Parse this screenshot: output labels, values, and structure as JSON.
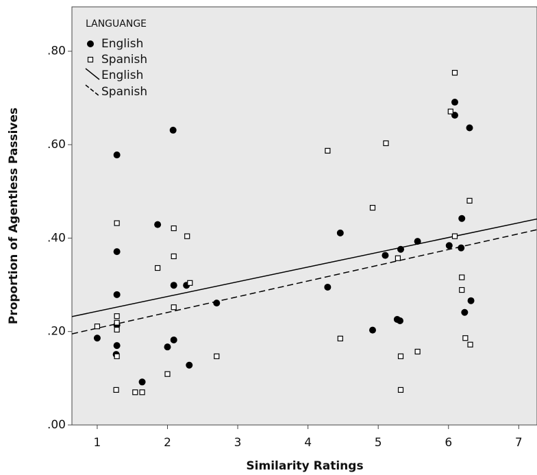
{
  "chart_data": {
    "type": "scatter",
    "x_label": "Similarity Ratings",
    "y_label": "Proportion of Agentless Passives",
    "legend_title": "LANGUANGE",
    "legend": "top-left",
    "xlim": [
      0.64,
      7.26
    ],
    "ylim": [
      0,
      0.895
    ],
    "xticks": [
      1,
      2,
      3,
      4,
      5,
      6,
      7
    ],
    "yticks": [
      {
        "value": 0,
        "label": ".00"
      },
      {
        "value": 0.2,
        "label": ".20"
      },
      {
        "value": 0.4,
        "label": ".40"
      },
      {
        "value": 0.6,
        "label": ".60"
      },
      {
        "value": 0.8,
        "label": ".80"
      }
    ],
    "series": [
      {
        "name": "English",
        "marker": "circle",
        "color": "#000000",
        "x": [
          1.0,
          1.27,
          1.28,
          1.28,
          1.28,
          1.28,
          1.28,
          1.64,
          1.86,
          2.08,
          2.09,
          2.09,
          2.0,
          2.27,
          2.31,
          2.7,
          4.28,
          4.46,
          4.92,
          5.1,
          5.27,
          5.31,
          5.32,
          5.56,
          6.01,
          6.09,
          6.09,
          6.18,
          6.32,
          6.23,
          6.3,
          6.19
        ],
        "values": [
          0.186,
          0.151,
          0.578,
          0.371,
          0.279,
          0.214,
          0.17,
          0.092,
          0.429,
          0.631,
          0.299,
          0.182,
          0.167,
          0.299,
          0.128,
          0.261,
          0.295,
          0.411,
          0.203,
          0.363,
          0.226,
          0.223,
          0.376,
          0.393,
          0.384,
          0.691,
          0.663,
          0.379,
          0.266,
          0.241,
          0.636,
          0.442
        ]
      },
      {
        "name": "Spanish",
        "marker": "square",
        "color": "#000000",
        "x": [
          1.0,
          1.27,
          1.28,
          1.28,
          1.28,
          1.28,
          1.28,
          1.54,
          1.64,
          1.86,
          2.09,
          2.09,
          2.09,
          2.28,
          2.32,
          2.0,
          2.7,
          4.28,
          4.46,
          4.92,
          5.11,
          5.28,
          5.32,
          5.32,
          5.56,
          6.03,
          6.09,
          6.09,
          6.19,
          6.24,
          6.31,
          6.3,
          6.19
        ],
        "values": [
          0.211,
          0.075,
          0.432,
          0.233,
          0.219,
          0.204,
          0.147,
          0.07,
          0.07,
          0.336,
          0.421,
          0.361,
          0.252,
          0.404,
          0.304,
          0.109,
          0.147,
          0.587,
          0.185,
          0.465,
          0.603,
          0.357,
          0.147,
          0.075,
          0.157,
          0.671,
          0.754,
          0.404,
          0.289,
          0.186,
          0.172,
          0.48,
          0.316
        ]
      }
    ],
    "fits": [
      {
        "name": "English",
        "style": "solid",
        "color": "#000000",
        "x": [
          0.64,
          7.26
        ],
        "values": [
          0.232,
          0.441
        ]
      },
      {
        "name": "Spanish",
        "style": "dashed",
        "color": "#000000",
        "x": [
          0.64,
          7.26
        ],
        "values": [
          0.195,
          0.418
        ]
      }
    ]
  }
}
